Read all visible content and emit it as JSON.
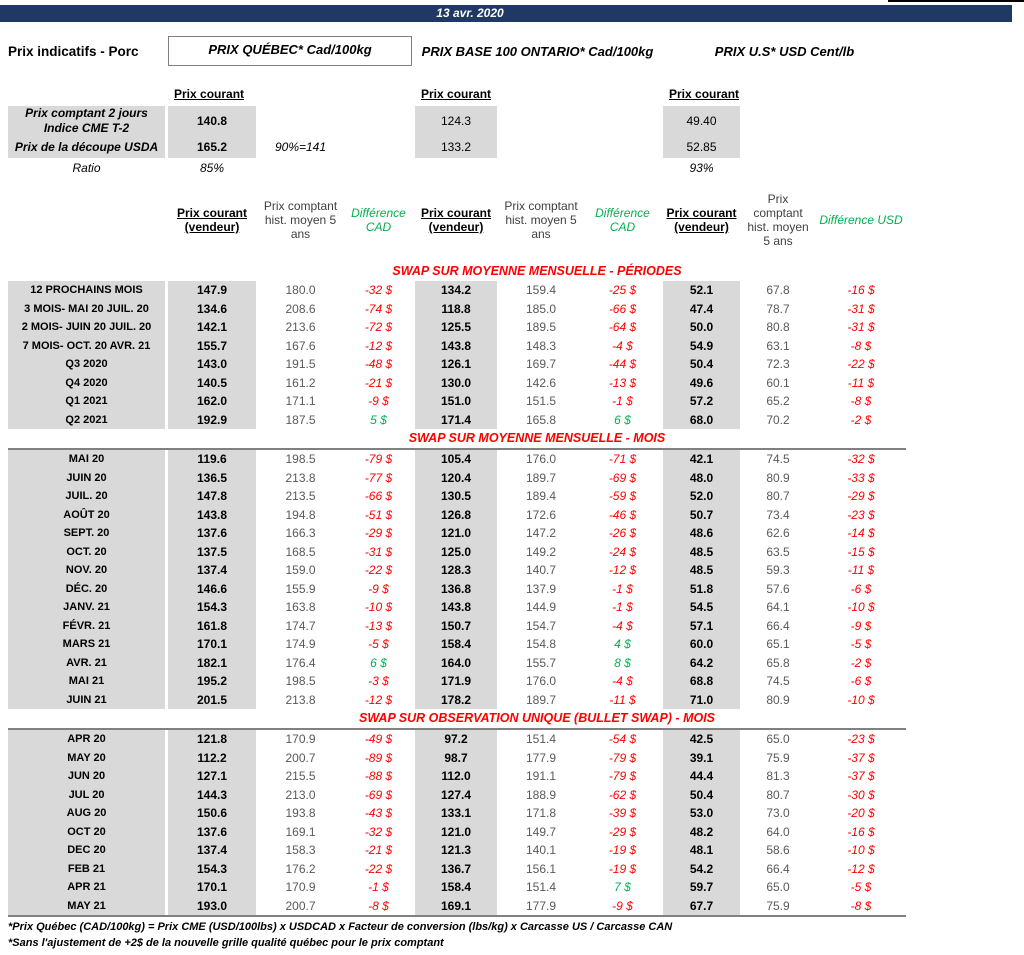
{
  "header": {
    "date": "13 avr. 2020"
  },
  "page_title": "Prix indicatifs - Porc",
  "groups": {
    "quebec": "PRIX QUÉBEC* Cad/100kg",
    "ontario": "PRIX BASE 100 ONTARIO* Cad/100kg",
    "us": "PRIX U.S* USD Cent/lb"
  },
  "labels": {
    "prix_courant": "Prix courant"
  },
  "spot": {
    "cme": {
      "label_line1": "Prix comptant 2 jours",
      "label_line2": "Indice CME T-2",
      "quebec": "140.8",
      "ontario": "124.3",
      "us": "49.40"
    },
    "usda": {
      "label": "Prix de la découpe USDA",
      "quebec": "165.2",
      "note": "90%=141",
      "ontario": "133.2",
      "us": "52.85"
    },
    "ratio": {
      "label": "Ratio",
      "quebec": "85%",
      "us": "93%"
    }
  },
  "table": {
    "headers": {
      "vendeur": "Prix courant (vendeur)",
      "hist": "Prix comptant hist. moyen 5 ans",
      "diff_cad": "Différence CAD",
      "diff_usd": "Différence USD"
    },
    "sections": [
      {
        "title": "SWAP SUR MOYENNE MENSUELLE - PÉRIODES",
        "rows": [
          [
            "12 PROCHAINS MOIS",
            "147.9",
            "180.0",
            "-32 $",
            "134.2",
            "159.4",
            "-25 $",
            "52.1",
            "67.8",
            "-16 $"
          ],
          [
            "3 MOIS- MAI 20 JUIL. 20",
            "134.6",
            "208.6",
            "-74 $",
            "118.8",
            "185.0",
            "-66 $",
            "47.4",
            "78.7",
            "-31 $"
          ],
          [
            "2 MOIS- JUIN 20 JUIL. 20",
            "142.1",
            "213.6",
            "-72 $",
            "125.5",
            "189.5",
            "-64 $",
            "50.0",
            "80.8",
            "-31 $"
          ],
          [
            "7 MOIS- OCT. 20 AVR. 21",
            "155.7",
            "167.6",
            "-12 $",
            "143.8",
            "148.3",
            "-4 $",
            "54.9",
            "63.1",
            "-8 $"
          ],
          [
            "Q3 2020",
            "143.0",
            "191.5",
            "-48 $",
            "126.1",
            "169.7",
            "-44 $",
            "50.4",
            "72.3",
            "-22 $"
          ],
          [
            "Q4 2020",
            "140.5",
            "161.2",
            "-21 $",
            "130.0",
            "142.6",
            "-13 $",
            "49.6",
            "60.1",
            "-11 $"
          ],
          [
            "Q1 2021",
            "162.0",
            "171.1",
            "-9 $",
            "151.0",
            "151.5",
            "-1 $",
            "57.2",
            "65.2",
            "-8 $"
          ],
          [
            "Q2 2021",
            "192.9",
            "187.5",
            "5 $",
            "171.4",
            "165.8",
            "6 $",
            "68.0",
            "70.2",
            "-2 $"
          ]
        ]
      },
      {
        "title": "SWAP SUR MOYENNE MENSUELLE - MOIS",
        "rows": [
          [
            "MAI 20",
            "119.6",
            "198.5",
            "-79 $",
            "105.4",
            "176.0",
            "-71 $",
            "42.1",
            "74.5",
            "-32 $"
          ],
          [
            "JUIN 20",
            "136.5",
            "213.8",
            "-77 $",
            "120.4",
            "189.7",
            "-69 $",
            "48.0",
            "80.9",
            "-33 $"
          ],
          [
            "JUIL. 20",
            "147.8",
            "213.5",
            "-66 $",
            "130.5",
            "189.4",
            "-59 $",
            "52.0",
            "80.7",
            "-29 $"
          ],
          [
            "AOÛT 20",
            "143.8",
            "194.8",
            "-51 $",
            "126.8",
            "172.6",
            "-46 $",
            "50.7",
            "73.4",
            "-23 $"
          ],
          [
            "SEPT. 20",
            "137.6",
            "166.3",
            "-29 $",
            "121.0",
            "147.2",
            "-26 $",
            "48.6",
            "62.6",
            "-14 $"
          ],
          [
            "OCT. 20",
            "137.5",
            "168.5",
            "-31 $",
            "125.0",
            "149.2",
            "-24 $",
            "48.5",
            "63.5",
            "-15 $"
          ],
          [
            "NOV. 20",
            "137.4",
            "159.0",
            "-22 $",
            "128.3",
            "140.7",
            "-12 $",
            "48.5",
            "59.3",
            "-11 $"
          ],
          [
            "DÉC. 20",
            "146.6",
            "155.9",
            "-9 $",
            "136.8",
            "137.9",
            "-1 $",
            "51.8",
            "57.6",
            "-6 $"
          ],
          [
            "JANV. 21",
            "154.3",
            "163.8",
            "-10 $",
            "143.8",
            "144.9",
            "-1 $",
            "54.5",
            "64.1",
            "-10 $"
          ],
          [
            "FÉVR. 21",
            "161.8",
            "174.7",
            "-13 $",
            "150.7",
            "154.7",
            "-4 $",
            "57.1",
            "66.4",
            "-9 $"
          ],
          [
            "MARS 21",
            "170.1",
            "174.9",
            "-5 $",
            "158.4",
            "154.8",
            "4 $",
            "60.0",
            "65.1",
            "-5 $"
          ],
          [
            "AVR. 21",
            "182.1",
            "176.4",
            "6 $",
            "164.0",
            "155.7",
            "8 $",
            "64.2",
            "65.8",
            "-2 $"
          ],
          [
            "MAI 21",
            "195.2",
            "198.5",
            "-3 $",
            "171.9",
            "176.0",
            "-4 $",
            "68.8",
            "74.5",
            "-6 $"
          ],
          [
            "JUIN 21",
            "201.5",
            "213.8",
            "-12 $",
            "178.2",
            "189.7",
            "-11 $",
            "71.0",
            "80.9",
            "-10 $"
          ]
        ]
      },
      {
        "title": "SWAP SUR OBSERVATION UNIQUE (BULLET SWAP) - MOIS",
        "rows": [
          [
            "APR 20",
            "121.8",
            "170.9",
            "-49 $",
            "97.2",
            "151.4",
            "-54 $",
            "42.5",
            "65.0",
            "-23 $"
          ],
          [
            "MAY 20",
            "112.2",
            "200.7",
            "-89 $",
            "98.7",
            "177.9",
            "-79 $",
            "39.1",
            "75.9",
            "-37 $"
          ],
          [
            "JUN 20",
            "127.1",
            "215.5",
            "-88 $",
            "112.0",
            "191.1",
            "-79 $",
            "44.4",
            "81.3",
            "-37 $"
          ],
          [
            "JUL 20",
            "144.3",
            "213.0",
            "-69 $",
            "127.4",
            "188.9",
            "-62 $",
            "50.4",
            "80.7",
            "-30 $"
          ],
          [
            "AUG 20",
            "150.6",
            "193.8",
            "-43 $",
            "133.1",
            "171.8",
            "-39 $",
            "53.0",
            "73.0",
            "-20 $"
          ],
          [
            "OCT 20",
            "137.6",
            "169.1",
            "-32 $",
            "121.0",
            "149.7",
            "-29 $",
            "48.2",
            "64.0",
            "-16 $"
          ],
          [
            "DEC 20",
            "137.4",
            "158.3",
            "-21 $",
            "121.3",
            "140.1",
            "-19 $",
            "48.1",
            "58.6",
            "-10 $"
          ],
          [
            "FEB 21",
            "154.3",
            "176.2",
            "-22 $",
            "136.7",
            "156.1",
            "-19 $",
            "54.2",
            "66.4",
            "-12 $"
          ],
          [
            "APR 21",
            "170.1",
            "170.9",
            "-1 $",
            "158.4",
            "151.4",
            "7 $",
            "59.7",
            "65.0",
            "-5 $"
          ],
          [
            "MAY 21",
            "193.0",
            "200.7",
            "-8 $",
            "169.1",
            "177.9",
            "-9 $",
            "67.7",
            "75.9",
            "-8 $"
          ]
        ]
      }
    ]
  },
  "footnotes": [
    "*Prix Québec (CAD/100kg) = Prix CME (USD/100lbs) x USDCAD x Facteur de conversion (lbs/kg) x Carcasse US / Carcasse CAN",
    "*Sans l'ajustement de +2$ de la nouvelle grille qualité québec pour le prix comptant"
  ],
  "colors": {
    "header_bar": "#1F3864",
    "negative": "#FF0000",
    "positive": "#00B050",
    "gray_fill": "#D9D9D9"
  }
}
